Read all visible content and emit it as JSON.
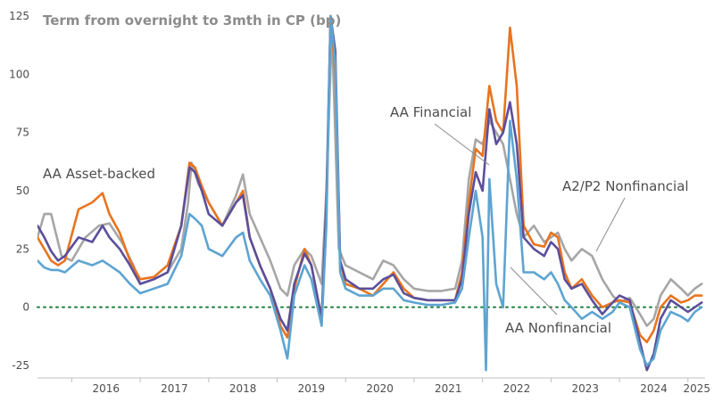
{
  "chart_data": {
    "type": "line",
    "title": "Term from overnight to 3mth in CP (bp)",
    "xlabel": "",
    "ylabel": "",
    "ylim": [
      -25,
      125
    ],
    "yticks": [
      125,
      100,
      75,
      50,
      25,
      0,
      -25
    ],
    "xlim": [
      2015.5,
      2025.25
    ],
    "xticks": [
      "2016",
      "2017",
      "2018",
      "2019",
      "2020",
      "2021",
      "2022",
      "2023",
      "2024",
      "2025"
    ],
    "grid": false,
    "zero_line": {
      "value": 0,
      "color": "#1a7f3c",
      "style": "dotted"
    },
    "series": [
      {
        "name": "A2/P2 Nonfinancial",
        "color": "#a6a6a6",
        "points": [
          [
            2015.5,
            30
          ],
          [
            2015.6,
            40
          ],
          [
            2015.7,
            40
          ],
          [
            2015.85,
            22
          ],
          [
            2016.0,
            20
          ],
          [
            2016.2,
            30
          ],
          [
            2016.4,
            35
          ],
          [
            2016.55,
            36
          ],
          [
            2016.75,
            27
          ],
          [
            2016.9,
            18
          ],
          [
            2017.0,
            10
          ],
          [
            2017.2,
            12
          ],
          [
            2017.4,
            15
          ],
          [
            2017.6,
            25
          ],
          [
            2017.7,
            45
          ],
          [
            2017.75,
            62
          ],
          [
            2017.85,
            53
          ],
          [
            2018.0,
            45
          ],
          [
            2018.2,
            35
          ],
          [
            2018.4,
            48
          ],
          [
            2018.5,
            57
          ],
          [
            2018.6,
            40
          ],
          [
            2018.75,
            30
          ],
          [
            2018.9,
            20
          ],
          [
            2019.05,
            8
          ],
          [
            2019.15,
            5
          ],
          [
            2019.25,
            18
          ],
          [
            2019.4,
            25
          ],
          [
            2019.5,
            22
          ],
          [
            2019.65,
            10
          ],
          [
            2019.72,
            50
          ],
          [
            2019.8,
            120
          ],
          [
            2019.9,
            25
          ],
          [
            2020.0,
            18
          ],
          [
            2020.2,
            15
          ],
          [
            2020.4,
            12
          ],
          [
            2020.55,
            20
          ],
          [
            2020.7,
            18
          ],
          [
            2020.85,
            12
          ],
          [
            2021.0,
            8
          ],
          [
            2021.2,
            7
          ],
          [
            2021.4,
            7
          ],
          [
            2021.6,
            8
          ],
          [
            2021.7,
            20
          ],
          [
            2021.8,
            55
          ],
          [
            2021.9,
            72
          ],
          [
            2022.0,
            70
          ],
          [
            2022.1,
            80
          ],
          [
            2022.2,
            75
          ],
          [
            2022.3,
            70
          ],
          [
            2022.4,
            55
          ],
          [
            2022.5,
            40
          ],
          [
            2022.6,
            30
          ],
          [
            2022.75,
            35
          ],
          [
            2022.9,
            28
          ],
          [
            2023.0,
            30
          ],
          [
            2023.1,
            32
          ],
          [
            2023.2,
            25
          ],
          [
            2023.3,
            20
          ],
          [
            2023.45,
            25
          ],
          [
            2023.6,
            22
          ],
          [
            2023.75,
            12
          ],
          [
            2023.9,
            5
          ],
          [
            2024.0,
            2
          ],
          [
            2024.15,
            4
          ],
          [
            2024.3,
            -3
          ],
          [
            2024.4,
            -8
          ],
          [
            2024.5,
            -5
          ],
          [
            2024.6,
            5
          ],
          [
            2024.75,
            12
          ],
          [
            2024.9,
            8
          ],
          [
            2025.0,
            5
          ],
          [
            2025.1,
            8
          ],
          [
            2025.2,
            10
          ]
        ]
      },
      {
        "name": "AA Asset-backed",
        "color": "#e8741e",
        "points": [
          [
            2015.5,
            30
          ],
          [
            2015.6,
            25
          ],
          [
            2015.7,
            20
          ],
          [
            2015.8,
            18
          ],
          [
            2015.9,
            20
          ],
          [
            2016.1,
            42
          ],
          [
            2016.3,
            45
          ],
          [
            2016.45,
            49
          ],
          [
            2016.55,
            40
          ],
          [
            2016.7,
            32
          ],
          [
            2016.85,
            20
          ],
          [
            2017.0,
            12
          ],
          [
            2017.2,
            13
          ],
          [
            2017.4,
            18
          ],
          [
            2017.6,
            35
          ],
          [
            2017.72,
            62
          ],
          [
            2017.8,
            60
          ],
          [
            2017.9,
            52
          ],
          [
            2018.0,
            45
          ],
          [
            2018.2,
            35
          ],
          [
            2018.4,
            45
          ],
          [
            2018.5,
            50
          ],
          [
            2018.6,
            30
          ],
          [
            2018.75,
            18
          ],
          [
            2018.9,
            8
          ],
          [
            2019.05,
            -8
          ],
          [
            2019.15,
            -13
          ],
          [
            2019.25,
            8
          ],
          [
            2019.4,
            25
          ],
          [
            2019.5,
            18
          ],
          [
            2019.65,
            -5
          ],
          [
            2019.72,
            40
          ],
          [
            2019.78,
            125
          ],
          [
            2019.85,
            100
          ],
          [
            2019.92,
            20
          ],
          [
            2020.0,
            10
          ],
          [
            2020.2,
            8
          ],
          [
            2020.4,
            5
          ],
          [
            2020.55,
            10
          ],
          [
            2020.7,
            15
          ],
          [
            2020.85,
            8
          ],
          [
            2021.0,
            4
          ],
          [
            2021.2,
            3
          ],
          [
            2021.4,
            3
          ],
          [
            2021.6,
            3
          ],
          [
            2021.7,
            15
          ],
          [
            2021.8,
            45
          ],
          [
            2021.9,
            68
          ],
          [
            2022.0,
            65
          ],
          [
            2022.1,
            95
          ],
          [
            2022.2,
            80
          ],
          [
            2022.3,
            75
          ],
          [
            2022.4,
            120
          ],
          [
            2022.5,
            95
          ],
          [
            2022.6,
            35
          ],
          [
            2022.75,
            27
          ],
          [
            2022.9,
            26
          ],
          [
            2023.0,
            32
          ],
          [
            2023.1,
            30
          ],
          [
            2023.2,
            15
          ],
          [
            2023.3,
            8
          ],
          [
            2023.45,
            12
          ],
          [
            2023.6,
            5
          ],
          [
            2023.75,
            0
          ],
          [
            2023.9,
            2
          ],
          [
            2024.0,
            3
          ],
          [
            2024.15,
            2
          ],
          [
            2024.3,
            -12
          ],
          [
            2024.4,
            -15
          ],
          [
            2024.5,
            -10
          ],
          [
            2024.6,
            0
          ],
          [
            2024.75,
            5
          ],
          [
            2024.9,
            2
          ],
          [
            2025.0,
            3
          ],
          [
            2025.1,
            5
          ],
          [
            2025.2,
            5
          ]
        ]
      },
      {
        "name": "AA Financial",
        "color": "#5b4f9b",
        "points": [
          [
            2015.5,
            35
          ],
          [
            2015.6,
            30
          ],
          [
            2015.7,
            24
          ],
          [
            2015.8,
            20
          ],
          [
            2015.9,
            22
          ],
          [
            2016.1,
            30
          ],
          [
            2016.3,
            28
          ],
          [
            2016.45,
            35
          ],
          [
            2016.55,
            30
          ],
          [
            2016.7,
            25
          ],
          [
            2016.85,
            18
          ],
          [
            2017.0,
            10
          ],
          [
            2017.2,
            12
          ],
          [
            2017.4,
            15
          ],
          [
            2017.6,
            35
          ],
          [
            2017.72,
            60
          ],
          [
            2017.8,
            58
          ],
          [
            2017.9,
            50
          ],
          [
            2018.0,
            40
          ],
          [
            2018.2,
            35
          ],
          [
            2018.4,
            45
          ],
          [
            2018.5,
            48
          ],
          [
            2018.6,
            30
          ],
          [
            2018.75,
            18
          ],
          [
            2018.9,
            8
          ],
          [
            2019.05,
            -5
          ],
          [
            2019.15,
            -10
          ],
          [
            2019.25,
            10
          ],
          [
            2019.4,
            23
          ],
          [
            2019.5,
            18
          ],
          [
            2019.65,
            -5
          ],
          [
            2019.72,
            45
          ],
          [
            2019.78,
            125
          ],
          [
            2019.85,
            110
          ],
          [
            2019.92,
            20
          ],
          [
            2020.0,
            12
          ],
          [
            2020.2,
            8
          ],
          [
            2020.4,
            8
          ],
          [
            2020.55,
            12
          ],
          [
            2020.7,
            14
          ],
          [
            2020.85,
            6
          ],
          [
            2021.0,
            4
          ],
          [
            2021.2,
            3
          ],
          [
            2021.4,
            3
          ],
          [
            2021.6,
            3
          ],
          [
            2021.7,
            12
          ],
          [
            2021.8,
            40
          ],
          [
            2021.9,
            58
          ],
          [
            2022.0,
            50
          ],
          [
            2022.1,
            85
          ],
          [
            2022.2,
            70
          ],
          [
            2022.3,
            75
          ],
          [
            2022.4,
            88
          ],
          [
            2022.5,
            70
          ],
          [
            2022.6,
            30
          ],
          [
            2022.75,
            25
          ],
          [
            2022.9,
            22
          ],
          [
            2023.0,
            28
          ],
          [
            2023.1,
            25
          ],
          [
            2023.2,
            12
          ],
          [
            2023.3,
            8
          ],
          [
            2023.45,
            10
          ],
          [
            2023.6,
            3
          ],
          [
            2023.75,
            -3
          ],
          [
            2023.9,
            2
          ],
          [
            2024.0,
            5
          ],
          [
            2024.15,
            3
          ],
          [
            2024.3,
            -15
          ],
          [
            2024.4,
            -27
          ],
          [
            2024.5,
            -20
          ],
          [
            2024.6,
            -5
          ],
          [
            2024.75,
            3
          ],
          [
            2024.9,
            0
          ],
          [
            2025.0,
            -2
          ],
          [
            2025.1,
            0
          ],
          [
            2025.2,
            2
          ]
        ]
      },
      {
        "name": "AA Nonfinancial",
        "color": "#5da4d1",
        "points": [
          [
            2015.5,
            20
          ],
          [
            2015.6,
            17
          ],
          [
            2015.7,
            16
          ],
          [
            2015.8,
            16
          ],
          [
            2015.9,
            15
          ],
          [
            2016.1,
            20
          ],
          [
            2016.3,
            18
          ],
          [
            2016.45,
            20
          ],
          [
            2016.55,
            18
          ],
          [
            2016.7,
            15
          ],
          [
            2016.85,
            10
          ],
          [
            2017.0,
            6
          ],
          [
            2017.2,
            8
          ],
          [
            2017.4,
            10
          ],
          [
            2017.6,
            22
          ],
          [
            2017.72,
            40
          ],
          [
            2017.8,
            38
          ],
          [
            2017.9,
            35
          ],
          [
            2018.0,
            25
          ],
          [
            2018.2,
            22
          ],
          [
            2018.4,
            30
          ],
          [
            2018.5,
            32
          ],
          [
            2018.6,
            20
          ],
          [
            2018.75,
            12
          ],
          [
            2018.9,
            5
          ],
          [
            2019.05,
            -10
          ],
          [
            2019.15,
            -22
          ],
          [
            2019.25,
            5
          ],
          [
            2019.4,
            18
          ],
          [
            2019.5,
            12
          ],
          [
            2019.65,
            -8
          ],
          [
            2019.72,
            35
          ],
          [
            2019.78,
            125
          ],
          [
            2019.85,
            105
          ],
          [
            2019.92,
            15
          ],
          [
            2020.0,
            8
          ],
          [
            2020.2,
            5
          ],
          [
            2020.4,
            5
          ],
          [
            2020.55,
            8
          ],
          [
            2020.7,
            8
          ],
          [
            2020.85,
            3
          ],
          [
            2021.0,
            2
          ],
          [
            2021.2,
            1
          ],
          [
            2021.4,
            1
          ],
          [
            2021.6,
            2
          ],
          [
            2021.7,
            8
          ],
          [
            2021.8,
            30
          ],
          [
            2021.9,
            50
          ],
          [
            2022.0,
            30
          ],
          [
            2022.05,
            -27
          ],
          [
            2022.1,
            55
          ],
          [
            2022.2,
            10
          ],
          [
            2022.3,
            0
          ],
          [
            2022.4,
            80
          ],
          [
            2022.5,
            55
          ],
          [
            2022.6,
            15
          ],
          [
            2022.75,
            15
          ],
          [
            2022.9,
            12
          ],
          [
            2023.0,
            15
          ],
          [
            2023.1,
            10
          ],
          [
            2023.2,
            3
          ],
          [
            2023.3,
            0
          ],
          [
            2023.45,
            -5
          ],
          [
            2023.6,
            -2
          ],
          [
            2023.75,
            -5
          ],
          [
            2023.9,
            -2
          ],
          [
            2024.0,
            2
          ],
          [
            2024.15,
            0
          ],
          [
            2024.3,
            -18
          ],
          [
            2024.4,
            -25
          ],
          [
            2024.5,
            -22
          ],
          [
            2024.6,
            -10
          ],
          [
            2024.75,
            -2
          ],
          [
            2024.9,
            -4
          ],
          [
            2025.0,
            -6
          ],
          [
            2025.1,
            -2
          ],
          [
            2025.2,
            0
          ]
        ]
      }
    ],
    "annotations": [
      {
        "text": "AA Asset-backed",
        "series": "AA Asset-backed"
      },
      {
        "text": "AA Financial",
        "series": "AA Financial"
      },
      {
        "text": "A2/P2 Nonfinancial",
        "series": "A2/P2 Nonfinancial"
      },
      {
        "text": "AA Nonfinancial",
        "series": "AA Nonfinancial"
      }
    ]
  }
}
